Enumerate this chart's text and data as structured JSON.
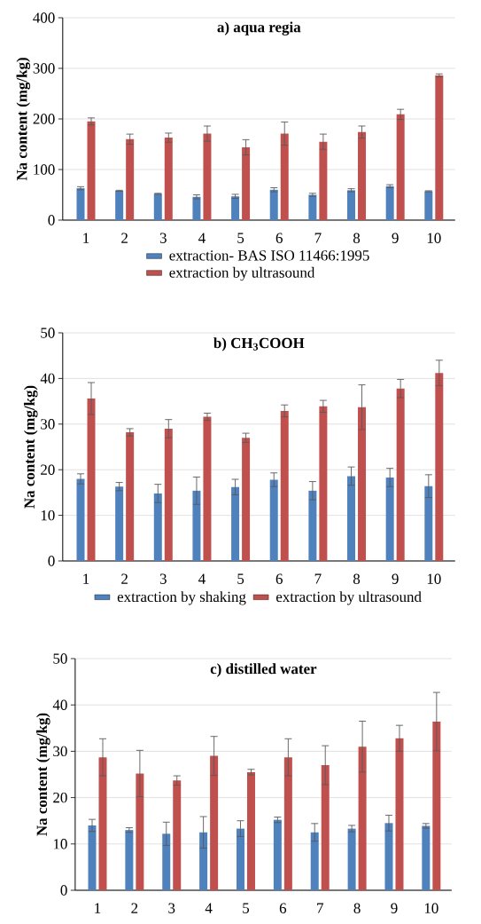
{
  "chart_data": [
    {
      "type": "bar",
      "title": "a) aqua regia",
      "ylabel": "Na content (mg/kg)",
      "categories": [
        "1",
        "2",
        "3",
        "4",
        "5",
        "6",
        "7",
        "8",
        "9",
        "10"
      ],
      "ylim": [
        0,
        400
      ],
      "yticks": [
        0,
        100,
        200,
        300,
        400
      ],
      "grid": "y",
      "legend": "bottom",
      "series": [
        {
          "name": "extraction- BAS ISO 11466:1995",
          "color": "#4f81bd",
          "values": [
            63,
            58,
            52,
            46,
            47,
            60,
            50,
            59,
            67,
            57
          ],
          "errors": [
            3,
            1,
            1,
            4,
            4,
            4,
            3,
            3,
            3,
            1
          ]
        },
        {
          "name": "extraction by ultrasound",
          "color": "#c0504d",
          "values": [
            195,
            160,
            163,
            171,
            144,
            171,
            155,
            174,
            209,
            286
          ],
          "errors": [
            7,
            10,
            9,
            15,
            15,
            23,
            15,
            12,
            10,
            3
          ]
        }
      ]
    },
    {
      "type": "bar",
      "title": "b) CH$_{3}$COOH",
      "ylabel": "Na content (mg/kg)",
      "categories": [
        "1",
        "2",
        "3",
        "4",
        "5",
        "6",
        "7",
        "8",
        "9",
        "10"
      ],
      "ylim": [
        0,
        50
      ],
      "yticks": [
        0,
        10,
        20,
        30,
        40,
        50
      ],
      "grid": "y",
      "legend": "bottom",
      "series": [
        {
          "name": "extraction by shaking",
          "color": "#4f81bd",
          "values": [
            18,
            16.3,
            14.8,
            15.4,
            16.2,
            17.8,
            15.4,
            18.6,
            18.3,
            16.4
          ],
          "errors": [
            1.1,
            0.9,
            2,
            3,
            1.7,
            1.5,
            2,
            2,
            2,
            2.5
          ]
        },
        {
          "name": "extraction by ultrasound",
          "color": "#c0504d",
          "values": [
            35.6,
            28.2,
            29,
            31.6,
            27,
            32.9,
            33.9,
            33.7,
            37.8,
            41.2
          ],
          "errors": [
            3.5,
            0.8,
            2,
            0.8,
            1,
            1.3,
            1.3,
            4.9,
            2,
            2.8
          ]
        }
      ]
    },
    {
      "type": "bar",
      "title": "c) distilled water",
      "ylabel": "Na content (mg/kg)",
      "categories": [
        "1",
        "2",
        "3",
        "4",
        "5",
        "6",
        "7",
        "8",
        "9",
        "10"
      ],
      "ylim": [
        0,
        50
      ],
      "yticks": [
        0,
        10,
        20,
        30,
        40,
        50
      ],
      "grid": "y",
      "series": [
        {
          "color": "#4f81bd",
          "values": [
            14,
            13,
            12.2,
            12.5,
            13.3,
            15.2,
            12.5,
            13.3,
            14.5,
            13.9
          ],
          "errors": [
            1.3,
            0.5,
            2.5,
            3.4,
            1.7,
            0.6,
            1.9,
            0.7,
            1.7,
            0.5
          ]
        },
        {
          "color": "#c0504d",
          "values": [
            28.7,
            25.2,
            23.7,
            29,
            25.5,
            28.7,
            27,
            31,
            32.8,
            36.4
          ],
          "errors": [
            4,
            5,
            1,
            4.2,
            0.6,
            4,
            4.2,
            5.5,
            2.8,
            6.3
          ]
        }
      ]
    }
  ]
}
